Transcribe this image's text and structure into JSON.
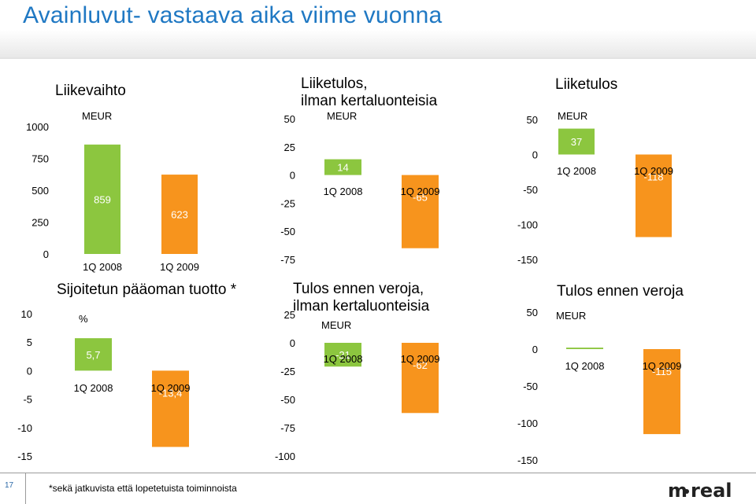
{
  "header": {
    "title": "Avainluvut- vastaava aika viime vuonna"
  },
  "footer": {
    "page_number": "17",
    "footnote": "*sekä jatkuvista että lopetetuista toiminnoista",
    "logo_text": "m-real"
  },
  "colors": {
    "green": "#8cc63f",
    "orange": "#f7941d",
    "title_blue": "#1f78c3"
  },
  "chart_data": [
    {
      "type": "bar",
      "title": "Liikevaihto",
      "unit": "MEUR",
      "categories": [
        "1Q 2008",
        "1Q 2009"
      ],
      "values": [
        859,
        623
      ],
      "value_labels": [
        "859",
        "623"
      ],
      "colors": [
        "#8cc63f",
        "#f7941d"
      ],
      "ylim": [
        0,
        1000
      ],
      "ticks": [
        0,
        250,
        500,
        750,
        1000
      ],
      "tick_labels": [
        "0",
        "250",
        "500",
        "750",
        "1000"
      ]
    },
    {
      "type": "bar",
      "title": "Liiketulos, ilman kertaluonteisia",
      "unit": "MEUR",
      "categories": [
        "1Q 2008",
        "1Q 2009"
      ],
      "values": [
        14,
        -65
      ],
      "value_labels": [
        "14",
        "-65"
      ],
      "colors": [
        "#8cc63f",
        "#f7941d"
      ],
      "ylim": [
        -75,
        50
      ],
      "ticks": [
        -75,
        -50,
        -25,
        0,
        25,
        50
      ],
      "tick_labels": [
        "-75",
        "-50",
        "-25",
        "0",
        "25",
        "50"
      ]
    },
    {
      "type": "bar",
      "title": "Liiketulos",
      "unit": "MEUR",
      "categories": [
        "1Q 2008",
        "1Q 2009"
      ],
      "values": [
        37,
        -118
      ],
      "value_labels": [
        "37",
        "-118"
      ],
      "colors": [
        "#8cc63f",
        "#f7941d"
      ],
      "ylim": [
        -150,
        50
      ],
      "ticks": [
        -150,
        -100,
        -50,
        0,
        50
      ],
      "tick_labels": [
        "-150",
        "-100",
        "-50",
        "0",
        "50"
      ]
    },
    {
      "type": "bar",
      "title": "Sijoitetun pääoman tuotto *",
      "unit": "%",
      "categories": [
        "1Q 2008",
        "1Q 2009"
      ],
      "values": [
        5.7,
        -13.4
      ],
      "value_labels": [
        "5,7",
        "-13,4"
      ],
      "colors": [
        "#8cc63f",
        "#f7941d"
      ],
      "ylim": [
        -15,
        10
      ],
      "ticks": [
        -15,
        -10,
        -5,
        0,
        5,
        10
      ],
      "tick_labels": [
        "-15",
        "-10",
        "-5",
        "0",
        "5",
        "10"
      ]
    },
    {
      "type": "bar",
      "title": "Tulos ennen veroja, ilman kertaluonteisia",
      "unit": "MEUR",
      "categories": [
        "1Q 2008",
        "1Q 2009"
      ],
      "values": [
        -21,
        -62
      ],
      "value_labels": [
        "-21",
        "-62"
      ],
      "colors": [
        "#8cc63f",
        "#f7941d"
      ],
      "ylim": [
        -100,
        25
      ],
      "ticks": [
        -100,
        -75,
        -50,
        -25,
        0,
        25
      ],
      "tick_labels": [
        "-100",
        "-75",
        "-50",
        "-25",
        "0",
        "25"
      ]
    },
    {
      "type": "bar",
      "title": "Tulos ennen veroja",
      "unit": "MEUR",
      "categories": [
        "1Q 2008",
        "1Q 2009"
      ],
      "values": [
        2,
        -115
      ],
      "value_labels": [
        "2",
        "-115"
      ],
      "colors": [
        "#8cc63f",
        "#f7941d"
      ],
      "ylim": [
        -150,
        50
      ],
      "ticks": [
        -150,
        -100,
        -50,
        0,
        50
      ],
      "tick_labels": [
        "-150",
        "-100",
        "-50",
        "0",
        "50"
      ]
    }
  ]
}
